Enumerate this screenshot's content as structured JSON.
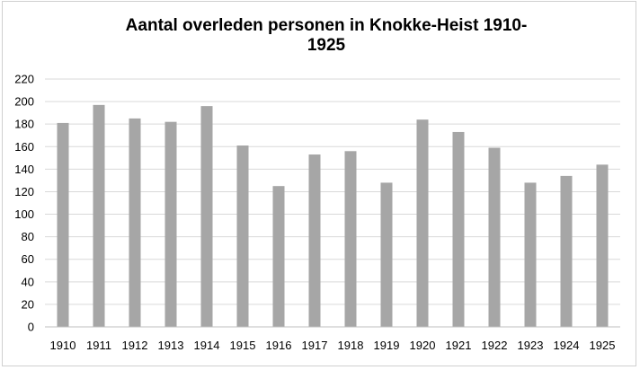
{
  "colors": {
    "bar": "#a6a6a6",
    "grid": "#d9d9d9",
    "axis": "#bfbfbf",
    "text": "#000000"
  },
  "chart_data": {
    "type": "bar",
    "title": "Aantal overleden personen in Knokke-Heist 1910-\n1925",
    "xlabel": "",
    "ylabel": "",
    "categories": [
      "1910",
      "1911",
      "1912",
      "1913",
      "1914",
      "1915",
      "1916",
      "1917",
      "1918",
      "1919",
      "1920",
      "1921",
      "1922",
      "1923",
      "1924",
      "1925"
    ],
    "values": [
      181,
      197,
      185,
      182,
      196,
      161,
      125,
      153,
      156,
      128,
      184,
      173,
      159,
      128,
      134,
      144
    ],
    "ylim": [
      0,
      220
    ],
    "yticks": [
      0,
      20,
      40,
      60,
      80,
      100,
      120,
      140,
      160,
      180,
      200,
      220
    ],
    "grid": true,
    "legend": "none"
  }
}
